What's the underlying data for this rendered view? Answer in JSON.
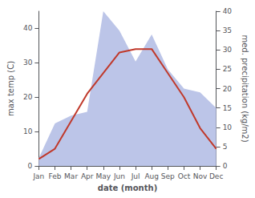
{
  "chart_data": {
    "type": "line",
    "categories": [
      "Jan",
      "Feb",
      "Mar",
      "Apr",
      "May",
      "Jun",
      "Jul",
      "Aug",
      "Sep",
      "Oct",
      "Nov",
      "Dec"
    ],
    "xlabel": "date (month)",
    "ylabel": "max temp (C)",
    "y2label": "med. precipitation (kg/m2)",
    "ylim": [
      0,
      45
    ],
    "yticks": [
      0,
      10,
      20,
      30,
      40
    ],
    "y2lim": [
      0,
      40
    ],
    "y2ticks": [
      0,
      5,
      10,
      15,
      20,
      25,
      30,
      35,
      40
    ],
    "grid": false,
    "series": [
      {
        "type": "area",
        "axis": "y2",
        "color": "#bcc5e8",
        "values": [
          2,
          11,
          13,
          14,
          40,
          35,
          27,
          34,
          25,
          20,
          19,
          15
        ]
      },
      {
        "type": "line",
        "color": "#c0392b",
        "values": [
          2,
          5,
          13,
          21,
          27,
          33,
          34,
          34,
          27,
          20,
          11,
          5
        ]
      }
    ]
  }
}
